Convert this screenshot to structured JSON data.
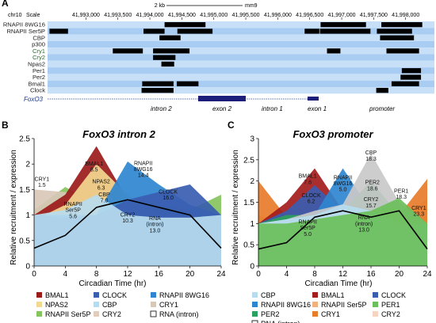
{
  "panel_a": {
    "letter": "A",
    "chrom": "chr10",
    "scale_label": "Scale",
    "scalebar_label": "2 kb",
    "assembly": "mm9",
    "ticks": [
      "41,993,000",
      "41,993,500",
      "41,994,000",
      "41,994,500",
      "41,995,000",
      "41,995,500",
      "41,996,000",
      "41,996,500",
      "41,997,000",
      "41,997,500",
      "41,998,000"
    ],
    "tracks": [
      {
        "label": "RNAPII 8WG16",
        "color": "#222222",
        "blocks": [
          [
            41994230,
            41994870
          ],
          [
            41996670,
            41997380
          ],
          [
            41997620,
            41998260
          ]
        ]
      },
      {
        "label": "RNAPII Ser5P",
        "color": "#222222",
        "blocks": [
          [
            41992430,
            41992720
          ],
          [
            41993900,
            41994230
          ],
          [
            41994430,
            41994980
          ],
          [
            41996420,
            41996650
          ],
          [
            41996660,
            41997450
          ],
          [
            41997550,
            41998100
          ]
        ]
      },
      {
        "label": "CBP",
        "color": "#222222",
        "blocks": [
          [
            41994150,
            41994480
          ],
          [
            41997600,
            41998130
          ]
        ]
      },
      {
        "label": "p300",
        "color": "#222222",
        "blocks": []
      },
      {
        "label": "Cry1",
        "color": "#2a6e2a",
        "blocks": [
          [
            41993420,
            41993890
          ],
          [
            41994050,
            41994620
          ],
          [
            41996770,
            41996980
          ],
          [
            41997700,
            41998210
          ]
        ]
      },
      {
        "label": "Cry2",
        "color": "#2a6e2a",
        "blocks": [
          [
            41994050,
            41994400
          ]
        ]
      },
      {
        "label": "Npas2",
        "color": "#222222",
        "blocks": [
          [
            41994180,
            41994380
          ]
        ]
      },
      {
        "label": "Per1",
        "color": "#222222",
        "blocks": [
          [
            41997940,
            41998240
          ]
        ]
      },
      {
        "label": "Per2",
        "color": "#222222",
        "blocks": [
          [
            41997920,
            41998240
          ]
        ]
      },
      {
        "label": "Bmal1",
        "color": "#222222",
        "blocks": [
          [
            41993880,
            41994370
          ],
          [
            41994420,
            41994760
          ],
          [
            41997780,
            41998210
          ]
        ]
      },
      {
        "label": "Clock",
        "color": "#222222",
        "blocks": [
          [
            41993870,
            41994370
          ],
          [
            41997540,
            41997730
          ]
        ]
      }
    ],
    "gene_label": "FoxO3",
    "gene_regions": [
      "intron 2",
      "exon 2",
      "intron 1",
      "exon 1",
      "promoter"
    ]
  },
  "charts": [
    {
      "letter": "B",
      "title": "FoxO3 intron 2",
      "chart_data": {
        "type": "area",
        "x": [
          0,
          4,
          8,
          12,
          16,
          20,
          24
        ],
        "xlabel": "Circadian Time (hr)",
        "ylabel": "Relative recruitment / expression",
        "xlim": [
          0,
          24
        ],
        "ylim": [
          0,
          2.5
        ],
        "yticks": [
          0,
          0.5,
          1,
          1.5,
          2,
          2.5
        ],
        "xticks": [
          0,
          4,
          8,
          12,
          16,
          20,
          24
        ],
        "grid": false,
        "series": [
          {
            "name": "CRY2",
            "color": "#e0cdbd",
            "values": [
              1.0,
              1.2,
              1.35,
              1.15,
              0.95,
              1.05,
              0.9
            ]
          },
          {
            "name": "RNAPII Ser5P",
            "color": "#86c45f",
            "values": [
              1.1,
              1.55,
              1.2,
              1.2,
              1.05,
              1.1,
              1.4
            ]
          },
          {
            "name": "CRY1",
            "color": "#d8c8b7",
            "values": [
              1.5,
              1.45,
              1.3,
              1.0,
              1.05,
              0.9,
              1.0
            ]
          },
          {
            "name": "BMAL1",
            "color": "#9b1b1b",
            "values": [
              1.0,
              1.4,
              2.35,
              1.3,
              1.2,
              1.1,
              1.0
            ]
          },
          {
            "name": "NPAS2",
            "color": "#f3d88f",
            "values": [
              0.9,
              1.2,
              2.0,
              1.4,
              1.0,
              1.0,
              1.0
            ]
          },
          {
            "name": "RNAPII 8WG16",
            "color": "#2f86d0",
            "values": [
              1.0,
              1.0,
              1.0,
              2.05,
              1.6,
              1.2,
              1.0
            ]
          },
          {
            "name": "CLOCK",
            "color": "#3a5db0",
            "values": [
              1.0,
              0.95,
              1.0,
              1.3,
              1.45,
              1.6,
              1.0
            ]
          },
          {
            "name": "CBP",
            "color": "#b7dcef",
            "values": [
              1.0,
              1.1,
              1.4,
              1.0,
              0.95,
              0.95,
              1.0
            ]
          },
          {
            "name": "RNA (intron)",
            "color": "#000000",
            "values": [
              0.35,
              0.6,
              1.15,
              1.3,
              1.15,
              1.0,
              0.35
            ]
          }
        ],
        "annotations": [
          {
            "label": "CRY1",
            "value": "1.5",
            "x": 1.0,
            "y": 1.65
          },
          {
            "label": "BMAL1",
            "value": "8.5",
            "x": 7.7,
            "y": 1.95
          },
          {
            "label": "NPAS2",
            "value": "6.3",
            "x": 8.6,
            "y": 1.6
          },
          {
            "label": "RNAPII Ser5P",
            "value": "5.6",
            "x": 5.0,
            "y": 1.1
          },
          {
            "label": "CBP",
            "value": "7.0",
            "x": 9.0,
            "y": 1.35
          },
          {
            "label": "RNAPII 8WG16",
            "value": "14.4",
            "x": 14.0,
            "y": 1.9
          },
          {
            "label": "CRY2",
            "value": "10.3",
            "x": 12.0,
            "y": 0.95
          },
          {
            "label": "RNA (intron)",
            "value": "13.0",
            "x": 15.5,
            "y": 0.82
          },
          {
            "label": "CLOCK",
            "value": "16.0",
            "x": 17.2,
            "y": 1.4
          }
        ]
      }
    },
    {
      "letter": "C",
      "title": "FoxO3 promoter",
      "chart_data": {
        "type": "area",
        "x": [
          0,
          4,
          8,
          12,
          16,
          20,
          24
        ],
        "xlabel": "Circadian Time (hr)",
        "ylabel": "Relative recruitment / expression",
        "xlim": [
          0,
          24
        ],
        "ylim": [
          0,
          3
        ],
        "yticks": [
          0,
          0.5,
          1,
          1.5,
          2,
          2.5,
          3
        ],
        "xticks": [
          0,
          4,
          8,
          12,
          16,
          20,
          24
        ],
        "grid": false,
        "series": [
          {
            "name": "CRY2",
            "color": "#f5d5c2",
            "values": [
              1.0,
              1.05,
              1.4,
              1.15,
              1.2,
              1.15,
              0.9
            ]
          },
          {
            "name": "RNAPII Ser5P",
            "color": "#f1b27e",
            "values": [
              1.2,
              1.0,
              1.1,
              1.15,
              1.1,
              1.0,
              1.6
            ]
          },
          {
            "name": "CRY1",
            "color": "#e77c2a",
            "values": [
              2.0,
              1.15,
              1.1,
              1.0,
              1.1,
              1.2,
              2.05
            ]
          },
          {
            "name": "BMAL1",
            "color": "#a41c1c",
            "values": [
              1.0,
              1.5,
              2.3,
              1.3,
              1.2,
              1.1,
              1.0
            ]
          },
          {
            "name": "CLOCK",
            "color": "#3a5db0",
            "values": [
              1.0,
              1.3,
              1.9,
              1.3,
              1.15,
              1.1,
              1.0
            ]
          },
          {
            "name": "RNAPII 8WG16",
            "color": "#2f86d0",
            "values": [
              1.0,
              1.0,
              1.2,
              2.3,
              1.3,
              1.1,
              1.0
            ]
          },
          {
            "name": "PER2",
            "color": "#2aa15c",
            "values": [
              1.0,
              1.2,
              1.2,
              1.3,
              2.0,
              1.2,
              1.0
            ]
          },
          {
            "name": "CBP",
            "color": "#c9c9c9",
            "values": [
              1.0,
              1.1,
              1.3,
              1.45,
              2.65,
              1.5,
              1.0
            ]
          },
          {
            "name": "RNAPII 8WG16 (light)",
            "color": "#b7dcef",
            "values": [
              1.0,
              1.1,
              1.2,
              1.45,
              1.3,
              1.0,
              1.0
            ]
          },
          {
            "name": "PER1",
            "color": "#6abf5a",
            "values": [
              1.0,
              1.0,
              1.1,
              1.2,
              1.3,
              1.6,
              1.0
            ]
          },
          {
            "name": "RNA (intron)",
            "color": "#000000",
            "values": [
              0.4,
              0.55,
              1.15,
              1.3,
              1.15,
              1.3,
              0.4
            ]
          }
        ],
        "annotations": [
          {
            "label": "BMAL1",
            "value": "7.6",
            "x": 7.0,
            "y": 2.05
          },
          {
            "label": "CLOCK",
            "value": "6.2",
            "x": 7.5,
            "y": 1.6
          },
          {
            "label": "RNAPII 8WG16",
            "value": "5.0",
            "x": 12.0,
            "y": 1.95
          },
          {
            "label": "RNAPII Ser5P",
            "value": "5.0",
            "x": 7.0,
            "y": 0.9
          },
          {
            "label": "CBP",
            "value": "18.3",
            "x": 16.0,
            "y": 2.6
          },
          {
            "label": "PER2",
            "value": "18.6",
            "x": 16.2,
            "y": 1.9
          },
          {
            "label": "CRY2",
            "value": "15.7",
            "x": 16.0,
            "y": 1.5
          },
          {
            "label": "RNA (intron)",
            "value": "13.0",
            "x": 15.0,
            "y": 1.0
          },
          {
            "label": "PER1",
            "value": "18.3",
            "x": 20.3,
            "y": 1.7
          },
          {
            "label": "CRY1",
            "value": "23.3",
            "x": 22.8,
            "y": 1.3
          }
        ]
      }
    }
  ],
  "legend_b": [
    {
      "name": "BMAL1",
      "color": "#9b1b1b"
    },
    {
      "name": "CLOCK",
      "color": "#3a5db0"
    },
    {
      "name": "RNAPII 8WG16",
      "color": "#2f86d0"
    },
    {
      "name": "NPAS2",
      "color": "#f3d88f"
    },
    {
      "name": "CBP",
      "color": "#b7dcef"
    },
    {
      "name": "CRY1",
      "color": "#d8c8b7"
    },
    {
      "name": "RNAPII Ser5P",
      "color": "#86c45f"
    },
    {
      "name": "CRY2",
      "color": "#e0cdbd"
    },
    {
      "name": "RNA (intron)",
      "color": "#ffffff"
    }
  ],
  "legend_c": [
    {
      "name": "CBP",
      "color": "#b7dcef"
    },
    {
      "name": "BMAL1",
      "color": "#a41c1c"
    },
    {
      "name": "CLOCK",
      "color": "#3a5db0"
    },
    {
      "name": "RNAPII 8WG16",
      "color": "#2f86d0"
    },
    {
      "name": "RNAPII Ser5P",
      "color": "#f1b27e"
    },
    {
      "name": "PER1",
      "color": "#6abf5a"
    },
    {
      "name": "PER2",
      "color": "#2aa15c"
    },
    {
      "name": "CRY1",
      "color": "#e77c2a"
    },
    {
      "name": "CRY2",
      "color": "#f5d5c2"
    },
    {
      "name": "RNA (intron)",
      "color": "#ffffff"
    }
  ]
}
